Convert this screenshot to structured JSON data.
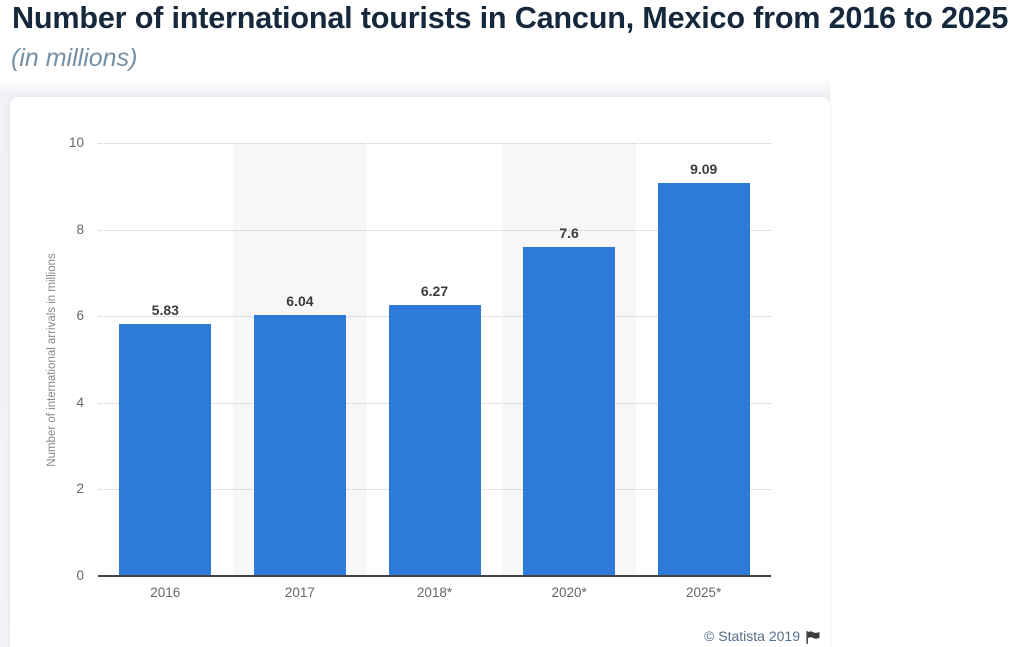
{
  "header": {
    "title": "Number of international tourists in Cancun, Mexico from 2016 to 2025",
    "subtitle": "(in millions)"
  },
  "chart_data": {
    "type": "bar",
    "title": "Number of international tourists in Cancun, Mexico from 2016 to 2025",
    "subtitle": "(in millions)",
    "categories": [
      "2016",
      "2017",
      "2018*",
      "2020*",
      "2025*"
    ],
    "values": [
      5.83,
      6.04,
      6.27,
      7.6,
      9.09
    ],
    "value_labels": [
      "5.83",
      "6.04",
      "6.27",
      "7.6",
      "9.09"
    ],
    "xlabel": "",
    "ylabel": "Number of international arrivals in millions",
    "ylim": [
      0,
      10
    ],
    "yticks": [
      0,
      2,
      4,
      6,
      8,
      10
    ],
    "grid": "dotted horizontal",
    "plot_bands_on_columns": [
      1,
      3
    ],
    "legend": "none",
    "bar_color": "#2e7ad8"
  },
  "footer": {
    "credit": "© Statista 2019",
    "flag_icon": "flag-icon"
  },
  "colors": {
    "title": "#15283c",
    "subtitle": "#7590a5",
    "bar": "#2e7ad8",
    "value_label": "#404040",
    "tick_label": "#666666",
    "y_axis_title": "#878787",
    "gridline": "#c9c9c9",
    "axis_line": "#424242",
    "plot_band": "#f7f7f8",
    "card_background": "#ffffff",
    "backdrop": "#f1f3f6",
    "credit": "#54708c"
  }
}
